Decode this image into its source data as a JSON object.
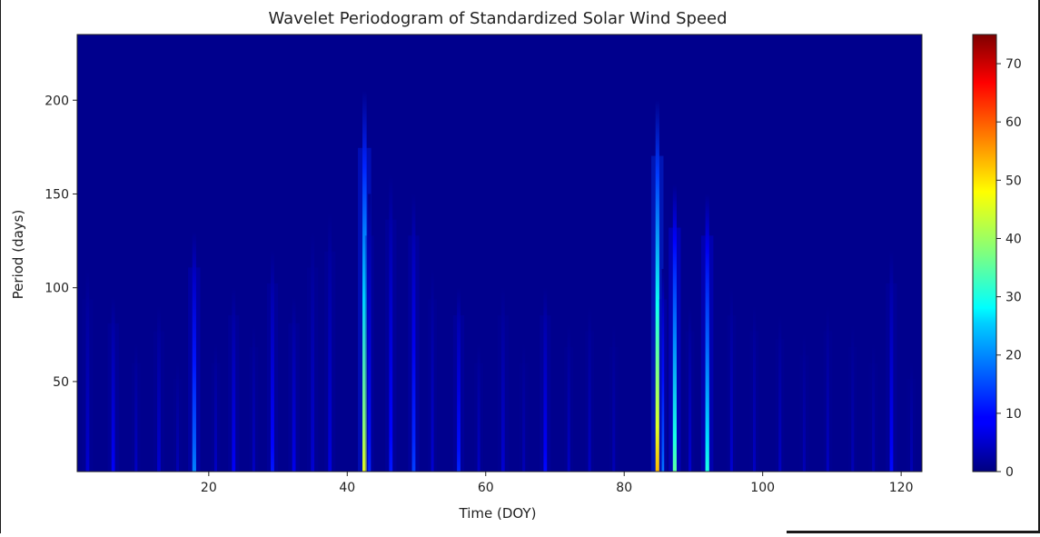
{
  "chart_data": {
    "type": "heatmap",
    "title": "Wavelet Periodogram of Standardized Solar Wind Speed",
    "xlabel": "Time (DOY)",
    "ylabel": "Period (days)",
    "xlim": [
      1,
      123
    ],
    "ylim": [
      2,
      235
    ],
    "xticks": [
      20,
      40,
      60,
      80,
      100,
      120
    ],
    "yticks": [
      50,
      100,
      150,
      200
    ],
    "colormap": "jet",
    "colorbar": {
      "min": 0,
      "max": 75,
      "ticks": [
        0,
        10,
        20,
        30,
        40,
        50,
        60,
        70
      ]
    },
    "background_value": 1,
    "streaks": [
      {
        "x": 2.5,
        "peak": 6,
        "top": 110,
        "width": 0.5
      },
      {
        "x": 6.2,
        "peak": 9,
        "top": 95,
        "width": 0.5
      },
      {
        "x": 9.5,
        "peak": 5,
        "top": 70,
        "width": 0.4
      },
      {
        "x": 12.8,
        "peak": 6,
        "top": 90,
        "width": 0.5
      },
      {
        "x": 15.5,
        "peak": 4,
        "top": 60,
        "width": 0.4
      },
      {
        "x": 17.9,
        "peak": 19,
        "top": 130,
        "width": 0.55
      },
      {
        "x": 21.0,
        "peak": 5,
        "top": 70,
        "width": 0.4
      },
      {
        "x": 23.6,
        "peak": 9,
        "top": 100,
        "width": 0.5
      },
      {
        "x": 26.5,
        "peak": 5,
        "top": 80,
        "width": 0.4
      },
      {
        "x": 29.2,
        "peak": 11,
        "top": 120,
        "width": 0.5
      },
      {
        "x": 32.3,
        "peak": 8,
        "top": 95,
        "width": 0.5
      },
      {
        "x": 35.0,
        "peak": 6,
        "top": 130,
        "width": 0.5
      },
      {
        "x": 37.5,
        "peak": 7,
        "top": 140,
        "width": 0.5
      },
      {
        "x": 42.5,
        "peak": 45,
        "top": 205,
        "width": 0.6
      },
      {
        "x": 43.2,
        "peak": 12,
        "top": 150,
        "width": 0.4
      },
      {
        "x": 46.3,
        "peak": 11,
        "top": 160,
        "width": 0.5
      },
      {
        "x": 49.6,
        "peak": 14,
        "top": 150,
        "width": 0.5
      },
      {
        "x": 52.3,
        "peak": 6,
        "top": 110,
        "width": 0.4
      },
      {
        "x": 56.1,
        "peak": 12,
        "top": 100,
        "width": 0.5
      },
      {
        "x": 59.0,
        "peak": 5,
        "top": 70,
        "width": 0.4
      },
      {
        "x": 62.5,
        "peak": 6,
        "top": 100,
        "width": 0.5
      },
      {
        "x": 65.5,
        "peak": 4,
        "top": 70,
        "width": 0.4
      },
      {
        "x": 68.6,
        "peak": 10,
        "top": 100,
        "width": 0.5
      },
      {
        "x": 72.0,
        "peak": 5,
        "top": 80,
        "width": 0.4
      },
      {
        "x": 75.0,
        "peak": 5,
        "top": 90,
        "width": 0.4
      },
      {
        "x": 78.5,
        "peak": 4,
        "top": 80,
        "width": 0.4
      },
      {
        "x": 84.8,
        "peak": 52,
        "top": 200,
        "width": 0.55
      },
      {
        "x": 85.6,
        "peak": 18,
        "top": 110,
        "width": 0.35
      },
      {
        "x": 87.3,
        "peak": 35,
        "top": 155,
        "width": 0.55
      },
      {
        "x": 89.5,
        "peak": 6,
        "top": 90,
        "width": 0.4
      },
      {
        "x": 92.0,
        "peak": 30,
        "top": 150,
        "width": 0.55
      },
      {
        "x": 95.5,
        "peak": 6,
        "top": 100,
        "width": 0.4
      },
      {
        "x": 98.8,
        "peak": 5,
        "top": 90,
        "width": 0.4
      },
      {
        "x": 102.5,
        "peak": 5,
        "top": 85,
        "width": 0.4
      },
      {
        "x": 106.0,
        "peak": 4,
        "top": 75,
        "width": 0.4
      },
      {
        "x": 109.4,
        "peak": 5,
        "top": 90,
        "width": 0.4
      },
      {
        "x": 113.0,
        "peak": 4,
        "top": 80,
        "width": 0.4
      },
      {
        "x": 116.0,
        "peak": 4,
        "top": 70,
        "width": 0.4
      },
      {
        "x": 118.6,
        "peak": 10,
        "top": 120,
        "width": 0.5
      },
      {
        "x": 121.5,
        "peak": 4,
        "top": 60,
        "width": 0.4
      }
    ]
  }
}
